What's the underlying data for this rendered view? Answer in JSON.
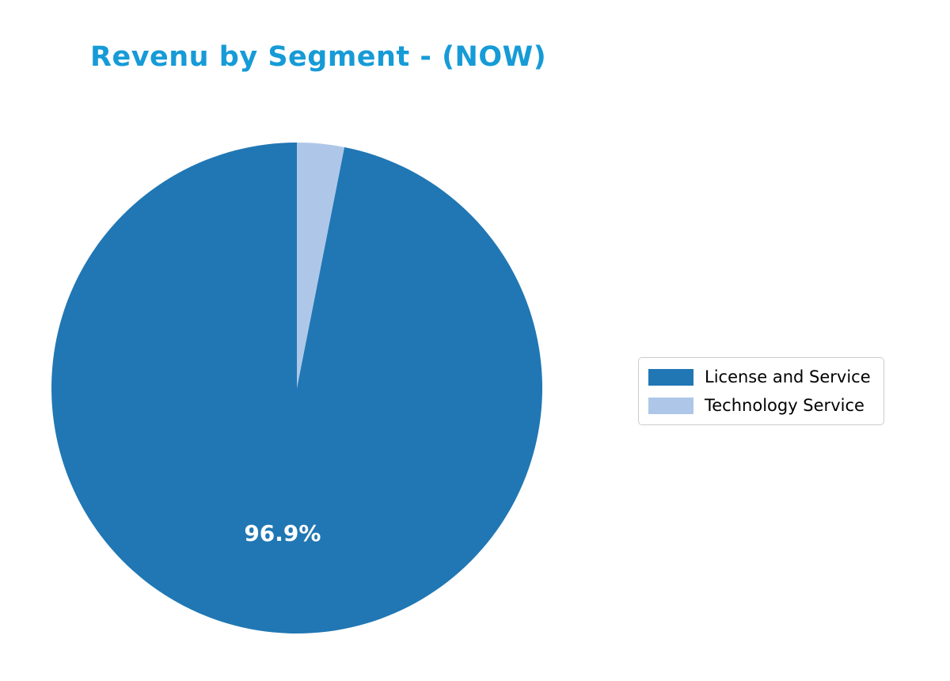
{
  "title": "Revenu by Segment - (NOW)",
  "title_color": "#169bd7",
  "chart_data": {
    "type": "pie",
    "title": "Revenu by Segment - (NOW)",
    "labels": [
      "License and Service",
      "Technology Service"
    ],
    "values": [
      96.9,
      3.1
    ],
    "pct_labels": [
      "96.9%",
      ""
    ],
    "colors": [
      "#2077b4",
      "#aec7e8"
    ],
    "start_angle": 90,
    "direction": "counterclockwise",
    "pct_distance": 0.6,
    "pct_label_color": "#ffffff",
    "legend_position": "center right",
    "grid": false
  },
  "legend": {
    "entries": [
      {
        "label": "License and Service",
        "color": "#2077b4"
      },
      {
        "label": "Technology Service",
        "color": "#aec7e8"
      }
    ]
  }
}
